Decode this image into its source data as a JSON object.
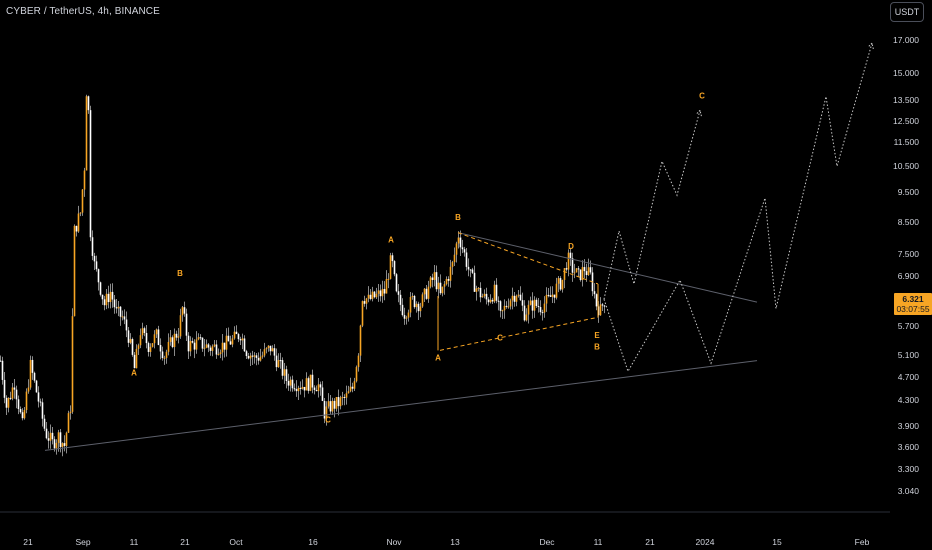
{
  "header": {
    "symbol_title": "CYBER / TetherUS, 4h, BINANCE",
    "currency": "USDT"
  },
  "price_tag": {
    "value": "6.321",
    "countdown": "03:07:55"
  },
  "colors": {
    "candle": "#f7a524",
    "wick": "#ffffff",
    "trend": "#5d606b",
    "projection": "#d1d4dc",
    "label": "#f7a524"
  },
  "chart_data": {
    "type": "candlestick",
    "title": "CYBER / TetherUS, 4h, BINANCE",
    "yscale": "log",
    "ylim": [
      2.8,
      18.5
    ],
    "y_ticks": [
      "17.000",
      "15.000",
      "13.500",
      "12.500",
      "11.500",
      "10.500",
      "9.500",
      "8.500",
      "7.500",
      "6.900",
      "6.321",
      "5.700",
      "5.100",
      "4.700",
      "4.300",
      "3.900",
      "3.600",
      "3.300",
      "3.040"
    ],
    "x_ticks": [
      "21",
      "Sep",
      "11",
      "21",
      "Oct",
      "16",
      "Nov",
      "13",
      "Dec",
      "11",
      "21",
      "2024",
      "15",
      "Feb"
    ],
    "price_path": [
      {
        "x": 0,
        "y": 5.0
      },
      {
        "x": 6,
        "y": 4.2
      },
      {
        "x": 14,
        "y": 4.6
      },
      {
        "x": 22,
        "y": 3.9
      },
      {
        "x": 30,
        "y": 4.9
      },
      {
        "x": 38,
        "y": 4.3
      },
      {
        "x": 45,
        "y": 3.8
      },
      {
        "x": 52,
        "y": 3.65
      },
      {
        "x": 58,
        "y": 3.75
      },
      {
        "x": 64,
        "y": 3.62
      },
      {
        "x": 70,
        "y": 4.2
      },
      {
        "x": 74,
        "y": 8.2
      },
      {
        "x": 80,
        "y": 8.8
      },
      {
        "x": 84,
        "y": 10.5
      },
      {
        "x": 87,
        "y": 16.2
      },
      {
        "x": 90,
        "y": 8.2
      },
      {
        "x": 94,
        "y": 7.2
      },
      {
        "x": 98,
        "y": 6.8
      },
      {
        "x": 104,
        "y": 6.2
      },
      {
        "x": 110,
        "y": 6.5
      },
      {
        "x": 116,
        "y": 6.0
      },
      {
        "x": 122,
        "y": 5.9
      },
      {
        "x": 128,
        "y": 5.5
      },
      {
        "x": 134,
        "y": 4.85
      },
      {
        "x": 140,
        "y": 5.6
      },
      {
        "x": 148,
        "y": 5.3
      },
      {
        "x": 156,
        "y": 5.5
      },
      {
        "x": 164,
        "y": 5.1
      },
      {
        "x": 172,
        "y": 5.4
      },
      {
        "x": 178,
        "y": 5.6
      },
      {
        "x": 182,
        "y": 6.1
      },
      {
        "x": 188,
        "y": 5.3
      },
      {
        "x": 198,
        "y": 5.35
      },
      {
        "x": 210,
        "y": 5.25
      },
      {
        "x": 222,
        "y": 5.3
      },
      {
        "x": 232,
        "y": 5.4
      },
      {
        "x": 240,
        "y": 5.55
      },
      {
        "x": 246,
        "y": 5.2
      },
      {
        "x": 254,
        "y": 5.05
      },
      {
        "x": 262,
        "y": 5.1
      },
      {
        "x": 270,
        "y": 5.25
      },
      {
        "x": 278,
        "y": 4.95
      },
      {
        "x": 286,
        "y": 4.65
      },
      {
        "x": 294,
        "y": 4.6
      },
      {
        "x": 302,
        "y": 4.55
      },
      {
        "x": 310,
        "y": 4.6
      },
      {
        "x": 318,
        "y": 4.55
      },
      {
        "x": 324,
        "y": 4.1
      },
      {
        "x": 330,
        "y": 4.2
      },
      {
        "x": 338,
        "y": 4.25
      },
      {
        "x": 346,
        "y": 4.35
      },
      {
        "x": 352,
        "y": 4.5
      },
      {
        "x": 358,
        "y": 5.2
      },
      {
        "x": 362,
        "y": 6.4
      },
      {
        "x": 368,
        "y": 6.3
      },
      {
        "x": 376,
        "y": 6.4
      },
      {
        "x": 384,
        "y": 6.5
      },
      {
        "x": 391,
        "y": 7.4
      },
      {
        "x": 396,
        "y": 6.4
      },
      {
        "x": 404,
        "y": 6.0
      },
      {
        "x": 412,
        "y": 6.3
      },
      {
        "x": 420,
        "y": 6.2
      },
      {
        "x": 428,
        "y": 6.6
      },
      {
        "x": 434,
        "y": 6.9
      },
      {
        "x": 440,
        "y": 6.4
      },
      {
        "x": 446,
        "y": 6.8
      },
      {
        "x": 452,
        "y": 7.2
      },
      {
        "x": 458,
        "y": 8.1
      },
      {
        "x": 464,
        "y": 7.5
      },
      {
        "x": 470,
        "y": 6.9
      },
      {
        "x": 478,
        "y": 6.5
      },
      {
        "x": 486,
        "y": 6.3
      },
      {
        "x": 494,
        "y": 6.5
      },
      {
        "x": 500,
        "y": 5.9
      },
      {
        "x": 508,
        "y": 6.3
      },
      {
        "x": 516,
        "y": 6.5
      },
      {
        "x": 524,
        "y": 6.0
      },
      {
        "x": 532,
        "y": 6.2
      },
      {
        "x": 540,
        "y": 6.15
      },
      {
        "x": 548,
        "y": 6.3
      },
      {
        "x": 556,
        "y": 6.6
      },
      {
        "x": 562,
        "y": 6.8
      },
      {
        "x": 567,
        "y": 7.4
      },
      {
        "x": 572,
        "y": 7.1
      },
      {
        "x": 578,
        "y": 6.9
      },
      {
        "x": 584,
        "y": 7.1
      },
      {
        "x": 590,
        "y": 6.9
      },
      {
        "x": 596,
        "y": 6.2
      },
      {
        "x": 600,
        "y": 6.05
      },
      {
        "x": 604,
        "y": 6.32
      }
    ],
    "trendlines": [
      {
        "name": "support",
        "from": {
          "x": 45,
          "y": 3.55
        },
        "to": {
          "x": 757,
          "y": 5.0
        }
      },
      {
        "name": "resistance",
        "from": {
          "x": 458,
          "y": 8.15
        },
        "to": {
          "x": 757,
          "y": 6.25
        }
      }
    ],
    "triangle": {
      "upper": {
        "from": {
          "x": 458,
          "y": 8.15
        },
        "to": {
          "x": 598,
          "y": 6.7
        }
      },
      "lower": {
        "from": {
          "x": 440,
          "y": 5.2
        },
        "to": {
          "x": 598,
          "y": 5.9
        }
      }
    },
    "projection_small": [
      {
        "x": 604,
        "y": 6.32
      },
      {
        "x": 619,
        "y": 8.2
      },
      {
        "x": 634,
        "y": 6.7
      },
      {
        "x": 662,
        "y": 10.7
      },
      {
        "x": 677,
        "y": 9.4
      },
      {
        "x": 700,
        "y": 13.0
      }
    ],
    "projection_large": [
      {
        "x": 604,
        "y": 6.32
      },
      {
        "x": 628,
        "y": 4.8
      },
      {
        "x": 680,
        "y": 6.8
      },
      {
        "x": 711,
        "y": 4.95
      },
      {
        "x": 765,
        "y": 9.3
      },
      {
        "x": 776,
        "y": 6.1
      },
      {
        "x": 826,
        "y": 13.7
      },
      {
        "x": 837,
        "y": 10.5
      },
      {
        "x": 872,
        "y": 16.8
      }
    ],
    "wave_labels": [
      {
        "text": "A",
        "x": 134,
        "y": 4.72
      },
      {
        "text": "B",
        "x": 180,
        "y": 6.9
      },
      {
        "text": "C",
        "x": 328,
        "y": 3.95
      },
      {
        "text": "A",
        "x": 391,
        "y": 7.85
      },
      {
        "text": "B",
        "x": 458,
        "y": 8.55
      },
      {
        "text": "A",
        "x": 438,
        "y": 5.0
      },
      {
        "text": "C",
        "x": 500,
        "y": 5.4
      },
      {
        "text": "D",
        "x": 571,
        "y": 7.65
      },
      {
        "text": "E",
        "x": 597,
        "y": 5.45
      },
      {
        "text": "B",
        "x": 597,
        "y": 5.22
      },
      {
        "text": "C",
        "x": 702,
        "y": 13.6
      }
    ]
  }
}
